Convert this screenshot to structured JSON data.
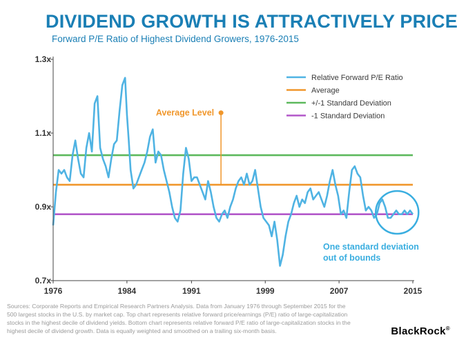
{
  "header": {
    "title": "DIVIDEND GROWTH IS ATTRACTIVELY PRICED",
    "subtitle": "Forward P/E Ratio of Highest Dividend Growers, 1976-2015"
  },
  "colors": {
    "title": "#1a7fb5",
    "series": "#4fb3e3",
    "average": "#f0962a",
    "plus_sd": "#5cb85c",
    "minus_sd": "#b257c9",
    "circle": "#3aaee0"
  },
  "chart_data": {
    "type": "line",
    "title": "Forward P/E Ratio of Highest Dividend Growers, 1976-2015",
    "xlabel": "",
    "ylabel": "",
    "xlim": [
      1976,
      2015
    ],
    "ylim": [
      0.7,
      1.3
    ],
    "x_ticks": [
      "1976",
      "1984",
      "1991",
      "1999",
      "2007",
      "2015"
    ],
    "x_tick_values": [
      1976,
      1984,
      1991,
      1999,
      2007,
      2015
    ],
    "y_ticks": [
      {
        "value": 0.7,
        "label": "0.7x"
      },
      {
        "value": 0.9,
        "label": "0.9x"
      },
      {
        "value": 1.1,
        "label": "1.1x"
      },
      {
        "value": 1.3,
        "label": "1.3x"
      }
    ],
    "series": [
      {
        "name": "Relative Forward P/E Ratio",
        "x": [
          1976.0,
          1976.3,
          1976.6,
          1976.9,
          1977.2,
          1977.5,
          1977.8,
          1978.1,
          1978.4,
          1978.7,
          1979.0,
          1979.3,
          1979.6,
          1979.9,
          1980.2,
          1980.5,
          1980.8,
          1981.1,
          1981.4,
          1981.7,
          1982.0,
          1982.3,
          1982.6,
          1982.9,
          1983.2,
          1983.5,
          1983.8,
          1984.0,
          1984.2,
          1984.4,
          1984.7,
          1985.0,
          1985.3,
          1985.6,
          1985.9,
          1986.2,
          1986.5,
          1986.8,
          1987.1,
          1987.4,
          1987.7,
          1988.0,
          1988.3,
          1988.6,
          1988.9,
          1989.2,
          1989.5,
          1989.8,
          1990.1,
          1990.4,
          1990.7,
          1991.0,
          1991.3,
          1991.6,
          1991.9,
          1992.2,
          1992.5,
          1992.8,
          1993.1,
          1993.4,
          1993.7,
          1994.0,
          1994.3,
          1994.6,
          1994.9,
          1995.2,
          1995.5,
          1995.8,
          1996.1,
          1996.4,
          1996.7,
          1997.0,
          1997.3,
          1997.6,
          1997.9,
          1998.2,
          1998.5,
          1998.8,
          1999.1,
          1999.4,
          1999.7,
          2000.0,
          2000.3,
          2000.6,
          2000.9,
          2001.2,
          2001.5,
          2001.8,
          2002.1,
          2002.4,
          2002.7,
          2003.0,
          2003.3,
          2003.6,
          2003.9,
          2004.2,
          2004.5,
          2004.8,
          2005.1,
          2005.4,
          2005.7,
          2006.0,
          2006.3,
          2006.6,
          2006.9,
          2007.2,
          2007.5,
          2007.8,
          2008.1,
          2008.4,
          2008.7,
          2009.0,
          2009.3,
          2009.6,
          2009.9,
          2010.2,
          2010.5,
          2010.8,
          2011.1,
          2011.4,
          2011.7,
          2012.0,
          2012.3,
          2012.6,
          2012.9,
          2013.2,
          2013.5,
          2013.8,
          2014.1,
          2014.4,
          2014.7,
          2015.0
        ],
        "values": [
          0.85,
          0.94,
          1.0,
          0.99,
          1.0,
          0.98,
          0.97,
          1.04,
          1.08,
          1.03,
          0.99,
          0.98,
          1.06,
          1.1,
          1.05,
          1.18,
          1.2,
          1.06,
          1.03,
          1.01,
          0.98,
          1.03,
          1.07,
          1.08,
          1.16,
          1.23,
          1.25,
          1.15,
          1.08,
          1.0,
          0.95,
          0.96,
          0.98,
          1.0,
          1.02,
          1.05,
          1.09,
          1.11,
          1.02,
          1.05,
          1.04,
          1.0,
          0.97,
          0.94,
          0.9,
          0.87,
          0.86,
          0.89,
          0.99,
          1.06,
          1.03,
          0.97,
          0.98,
          0.98,
          0.96,
          0.94,
          0.92,
          0.97,
          0.94,
          0.9,
          0.87,
          0.86,
          0.88,
          0.89,
          0.87,
          0.9,
          0.92,
          0.95,
          0.97,
          0.98,
          0.96,
          0.99,
          0.96,
          0.97,
          1.0,
          0.95,
          0.9,
          0.87,
          0.86,
          0.85,
          0.82,
          0.86,
          0.81,
          0.74,
          0.77,
          0.82,
          0.86,
          0.88,
          0.91,
          0.93,
          0.9,
          0.92,
          0.91,
          0.94,
          0.95,
          0.92,
          0.93,
          0.94,
          0.92,
          0.9,
          0.93,
          0.97,
          1.0,
          0.96,
          0.93,
          0.88,
          0.89,
          0.87,
          0.94,
          1.0,
          1.01,
          0.99,
          0.98,
          0.93,
          0.89,
          0.9,
          0.89,
          0.87,
          0.88,
          0.91,
          0.92,
          0.9,
          0.87,
          0.87,
          0.88,
          0.89,
          0.88,
          0.88,
          0.89,
          0.88,
          0.89,
          0.88
        ]
      }
    ],
    "reference_lines": [
      {
        "name": "Average",
        "value": 0.96
      },
      {
        "name": "+/-1 Standard Deviation",
        "value": 1.04
      },
      {
        "name": "-1 Standard Deviation",
        "value": 0.88
      }
    ],
    "legend": [
      {
        "label": "Relative Forward P/E Ratio",
        "color_key": "series"
      },
      {
        "label": "Average",
        "color_key": "average"
      },
      {
        "label": "+/-1 Standard Deviation",
        "color_key": "plus_sd"
      },
      {
        "label": "-1 Standard Deviation",
        "color_key": "minus_sd"
      }
    ],
    "legend_position": "top-right",
    "annotations": {
      "average_level": {
        "text": "Average Level",
        "x": 1994.2,
        "from_value": 0.96,
        "to_value": 1.155
      },
      "out_of_bounds": {
        "line1": "One standard deviation",
        "line2": "out of bounds",
        "center_x": 2013.3,
        "center_value": 0.885
      }
    }
  },
  "footer": {
    "source_text": "Sources: Corporate Reports and Empirical Research Partners Analysis. Data from January 1976 through September 2015 for the 500 largest stocks in the U.S. by market cap. Top chart represents relative forward price/earnings (P/E) ratio of large-capitalization stocks in the highest decile of dividend yields. Bottom chart represents relative forward P/E ratio of large-capitalization stocks in the highest decile of dividend growth. Data is equally weighted and smoothed on a trailing six-month basis.",
    "brand": "BlackRock",
    "brand_mark": "®"
  }
}
